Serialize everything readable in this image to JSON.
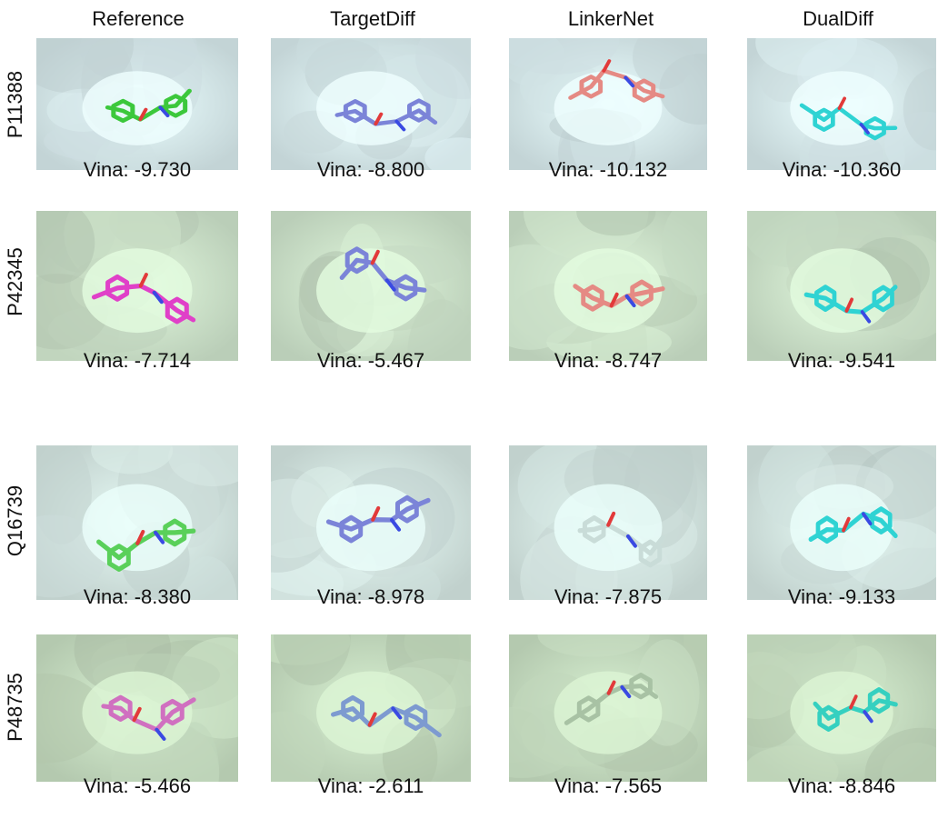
{
  "columns": [
    "Reference",
    "TargetDiff",
    "LinkerNet",
    "DualDiff"
  ],
  "rows": [
    {
      "label": "P11388",
      "surface_color": "#d9ebee",
      "cells": [
        {
          "vina": "Vina: -9.730",
          "ligand_color": "#3cc83c"
        },
        {
          "vina": "Vina: -8.800",
          "ligand_color": "#7b84d8"
        },
        {
          "vina": "Vina: -10.132",
          "ligand_color": "#e58a84"
        },
        {
          "vina": "Vina: -10.360",
          "ligand_color": "#2fd3d3"
        }
      ]
    },
    {
      "label": "P42345",
      "surface_color": "#cfe5cc",
      "cells": [
        {
          "vina": "Vina: -7.714",
          "ligand_color": "#e040c8"
        },
        {
          "vina": "Vina: -5.467",
          "ligand_color": "#7b84d8"
        },
        {
          "vina": "Vina: -8.747",
          "ligand_color": "#e58a84"
        },
        {
          "vina": "Vina: -9.541",
          "ligand_color": "#2fd3d3"
        }
      ]
    },
    {
      "label": "Q16739",
      "surface_color": "#d6e8e4",
      "cells": [
        {
          "vina": "Vina: -8.380",
          "ligand_color": "#5ad05a"
        },
        {
          "vina": "Vina: -8.978",
          "ligand_color": "#7b84d8"
        },
        {
          "vina": "Vina: -7.875",
          "ligand_color": "#c9dcd8"
        },
        {
          "vina": "Vina: -9.133",
          "ligand_color": "#2fd3d3"
        }
      ]
    },
    {
      "label": "P48735",
      "surface_color": "#c8dfc2",
      "cells": [
        {
          "vina": "Vina: -5.466",
          "ligand_color": "#d070c0"
        },
        {
          "vina": "Vina: -2.611",
          "ligand_color": "#7d9ad0"
        },
        {
          "vina": "Vina: -7.565",
          "ligand_color": "#a8c2a4"
        },
        {
          "vina": "Vina: -8.846",
          "ligand_color": "#35d0c0"
        }
      ]
    }
  ]
}
